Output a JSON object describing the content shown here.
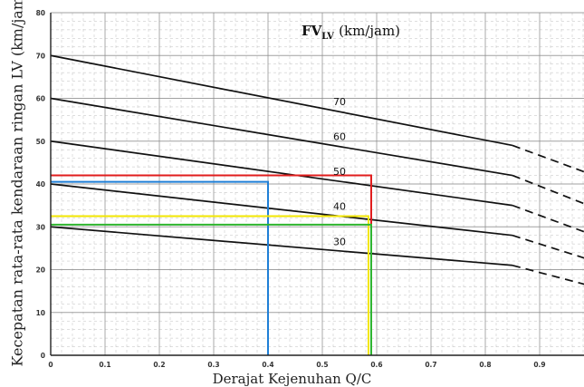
{
  "chart_data": {
    "type": "line",
    "xlabel": "Derajat Kejenuhan Q/C",
    "ylabel": "Kecepatan rata-rata kendaraan ringan LV (km/jam)",
    "legend_title": {
      "main": "FV",
      "sub": "LV",
      "unit": "(km/jam)"
    },
    "xlim": [
      0,
      1.0
    ],
    "ylim": [
      0,
      80
    ],
    "x_ticks": [
      "0",
      "0.1",
      "0.2",
      "0.3",
      "0.4",
      "0.5",
      "0.6",
      "0.7",
      "0.8",
      "0.9"
    ],
    "y_ticks": [
      "0",
      "10",
      "20",
      "30",
      "40",
      "50",
      "60",
      "70",
      "80"
    ],
    "grid": true,
    "series": [
      {
        "name": "70",
        "x": [
          0,
          0.85,
          1.0
        ],
        "y": [
          70,
          49,
          42
        ]
      },
      {
        "name": "60",
        "x": [
          0,
          0.85,
          1.0
        ],
        "y": [
          60,
          42,
          34.5
        ]
      },
      {
        "name": "50",
        "x": [
          0,
          0.85,
          1.0
        ],
        "y": [
          50,
          35,
          28
        ]
      },
      {
        "name": "40",
        "x": [
          0,
          0.85,
          1.0
        ],
        "y": [
          40,
          28,
          22
        ]
      },
      {
        "name": "30",
        "x": [
          0,
          0.85,
          1.0
        ],
        "y": [
          30,
          21,
          16
        ]
      }
    ],
    "reference_lines": [
      {
        "color": "#e11d1d",
        "x": 0.59,
        "y": 42
      },
      {
        "color": "#1f7fd6",
        "x": 0.4,
        "y": 40.5
      },
      {
        "color": "#f2e600",
        "x": 0.585,
        "y": 32.5
      },
      {
        "color": "#2fb52f",
        "x": 0.59,
        "y": 30.5
      }
    ],
    "colors": {
      "curve": "#111111",
      "grid": "#8a8a8a"
    }
  }
}
